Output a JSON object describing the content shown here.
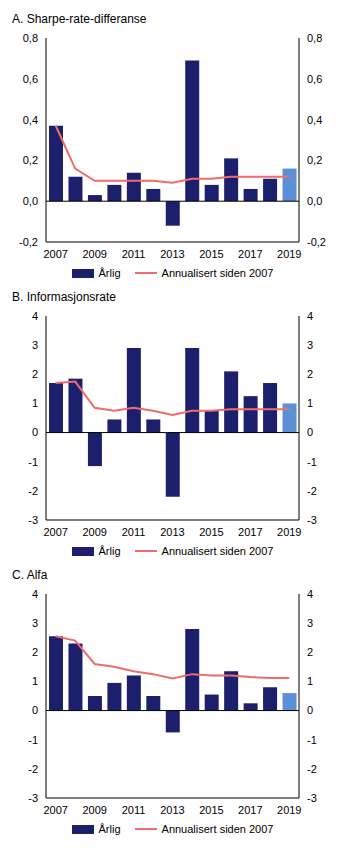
{
  "chart_data": [
    {
      "type": "bar",
      "title": "A. Sharpe-rate-differanse",
      "categories": [
        "2007",
        null,
        "2009",
        null,
        "2011",
        null,
        "2013",
        null,
        "2015",
        null,
        "2017",
        null,
        "2019"
      ],
      "series": [
        {
          "name": "Årlig",
          "type": "bar",
          "colors": [
            "#1c1f6b",
            "#1c1f6b",
            "#1c1f6b",
            "#1c1f6b",
            "#1c1f6b",
            "#1c1f6b",
            "#1c1f6b",
            "#1c1f6b",
            "#1c1f6b",
            "#1c1f6b",
            "#1c1f6b",
            "#1c1f6b",
            "#5b8fd6"
          ],
          "values": [
            0.37,
            0.12,
            0.03,
            0.08,
            0.14,
            0.06,
            -0.12,
            0.69,
            0.08,
            0.21,
            0.06,
            0.11,
            0.16
          ]
        },
        {
          "name": "Annualisert siden 2007",
          "type": "line",
          "color": "#f26b6b",
          "values": [
            0.37,
            0.16,
            0.1,
            0.1,
            0.1,
            0.1,
            0.09,
            0.11,
            0.11,
            0.12,
            0.12,
            0.12,
            0.12
          ]
        }
      ],
      "ylim": [
        -0.2,
        0.8
      ],
      "yticks": [
        {
          "value": -0.2,
          "label": "-0,2"
        },
        {
          "value": 0,
          "label": "0,0"
        },
        {
          "value": 0.2,
          "label": "0,2"
        },
        {
          "value": 0.4,
          "label": "0,4"
        },
        {
          "value": 0.6,
          "label": "0,6"
        },
        {
          "value": 0.8,
          "label": "0,8"
        }
      ],
      "y2lim": [
        -0.2,
        0.8
      ],
      "y2ticks": [
        {
          "value": -0.2,
          "label": "-0,2"
        },
        {
          "value": 0,
          "label": "0,0"
        },
        {
          "value": 0.2,
          "label": "0,2"
        },
        {
          "value": 0.4,
          "label": "0,4"
        },
        {
          "value": 0.6,
          "label": "0,6"
        },
        {
          "value": 0.8,
          "label": "0,8"
        }
      ],
      "legend": "bottom",
      "grid": false
    },
    {
      "type": "bar",
      "title": "B. Informasjonsrate",
      "categories": [
        "2007",
        null,
        "2009",
        null,
        "2011",
        null,
        "2013",
        null,
        "2015",
        null,
        "2017",
        null,
        "2019"
      ],
      "series": [
        {
          "name": "Årlig",
          "type": "bar",
          "colors": [
            "#1c1f6b",
            "#1c1f6b",
            "#1c1f6b",
            "#1c1f6b",
            "#1c1f6b",
            "#1c1f6b",
            "#1c1f6b",
            "#1c1f6b",
            "#1c1f6b",
            "#1c1f6b",
            "#1c1f6b",
            "#1c1f6b",
            "#5b8fd6"
          ],
          "values": [
            1.7,
            1.85,
            -1.15,
            0.45,
            2.9,
            0.45,
            -2.2,
            2.9,
            0.75,
            2.1,
            1.25,
            1.7,
            1.0
          ]
        },
        {
          "name": "Annualisert siden 2007",
          "type": "line",
          "color": "#f26b6b",
          "values": [
            1.7,
            1.75,
            0.85,
            0.75,
            0.85,
            0.75,
            0.6,
            0.75,
            0.75,
            0.8,
            0.8,
            0.8,
            0.8
          ]
        }
      ],
      "ylim": [
        -3,
        4
      ],
      "yticks": [
        -3,
        -2,
        -1,
        0,
        1,
        2,
        3,
        4
      ],
      "y2lim": [
        -3,
        4
      ],
      "y2ticks": [
        -3,
        -2,
        -1,
        0,
        1,
        2,
        3,
        4
      ],
      "legend": "bottom",
      "grid": false
    },
    {
      "type": "bar",
      "title": "C. Alfa",
      "categories": [
        "2007",
        null,
        "2009",
        null,
        "2011",
        null,
        "2013",
        null,
        "2015",
        null,
        "2017",
        null,
        "2019"
      ],
      "series": [
        {
          "name": "Årlig",
          "type": "bar",
          "colors": [
            "#1c1f6b",
            "#1c1f6b",
            "#1c1f6b",
            "#1c1f6b",
            "#1c1f6b",
            "#1c1f6b",
            "#1c1f6b",
            "#1c1f6b",
            "#1c1f6b",
            "#1c1f6b",
            "#1c1f6b",
            "#1c1f6b",
            "#5b8fd6"
          ],
          "values": [
            2.55,
            2.3,
            0.5,
            0.95,
            1.2,
            0.5,
            -0.75,
            2.8,
            0.55,
            1.35,
            0.25,
            0.8,
            0.6
          ]
        },
        {
          "name": "Annualisert siden 2007",
          "type": "line",
          "color": "#f26b6b",
          "values": [
            2.55,
            2.4,
            1.6,
            1.5,
            1.35,
            1.25,
            1.1,
            1.25,
            1.2,
            1.2,
            1.15,
            1.12,
            1.12
          ]
        }
      ],
      "ylim": [
        -3,
        4
      ],
      "yticks": [
        -3,
        -2,
        -1,
        0,
        1,
        2,
        3,
        4
      ],
      "y2lim": [
        -3,
        4
      ],
      "y2ticks": [
        -3,
        -2,
        -1,
        0,
        1,
        2,
        3,
        4
      ],
      "legend": "bottom",
      "grid": false
    }
  ]
}
